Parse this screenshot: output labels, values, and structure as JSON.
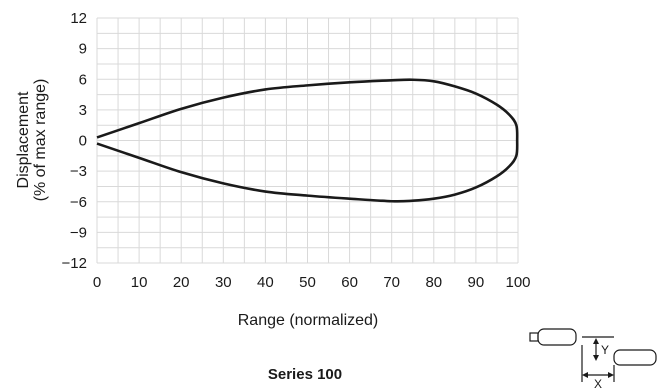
{
  "chart_data": {
    "type": "line",
    "title": "Series 100",
    "xlabel": "Range (normalized)",
    "ylabel_line1": "Displacement",
    "ylabel_line2": "(% of max range)",
    "xlim": [
      0,
      100
    ],
    "ylim": [
      -12,
      12
    ],
    "xticks": [
      0,
      10,
      20,
      30,
      40,
      50,
      60,
      70,
      80,
      90,
      100
    ],
    "yticks": [
      12,
      9,
      6,
      3,
      0,
      -3,
      -6,
      -9,
      -12
    ],
    "ytick_labels": [
      "12",
      "9",
      "6",
      "3",
      "0",
      "−3",
      "−6",
      "−9",
      "−12"
    ],
    "grid": true,
    "series": [
      {
        "points": [
          [
            0,
            0.3
          ],
          [
            10,
            1.7
          ],
          [
            20,
            3.1
          ],
          [
            30,
            4.2
          ],
          [
            40,
            5.0
          ],
          [
            50,
            5.4
          ],
          [
            60,
            5.7
          ],
          [
            70,
            5.9
          ],
          [
            75,
            5.95
          ],
          [
            80,
            5.8
          ],
          [
            85,
            5.3
          ],
          [
            90,
            4.6
          ],
          [
            95,
            3.5
          ],
          [
            98,
            2.5
          ],
          [
            99.6,
            1.5
          ],
          [
            99.8,
            0
          ],
          [
            99.6,
            -1.5
          ],
          [
            98,
            -2.5
          ],
          [
            95,
            -3.5
          ],
          [
            90,
            -4.6
          ],
          [
            85,
            -5.3
          ],
          [
            80,
            -5.7
          ],
          [
            75,
            -5.9
          ],
          [
            70,
            -5.95
          ],
          [
            60,
            -5.7
          ],
          [
            50,
            -5.4
          ],
          [
            40,
            -5.0
          ],
          [
            30,
            -4.2
          ],
          [
            20,
            -3.1
          ],
          [
            10,
            -1.7
          ],
          [
            0,
            -0.3
          ]
        ]
      }
    ]
  },
  "diagram": {
    "y_label": "Y",
    "x_label": "X"
  }
}
